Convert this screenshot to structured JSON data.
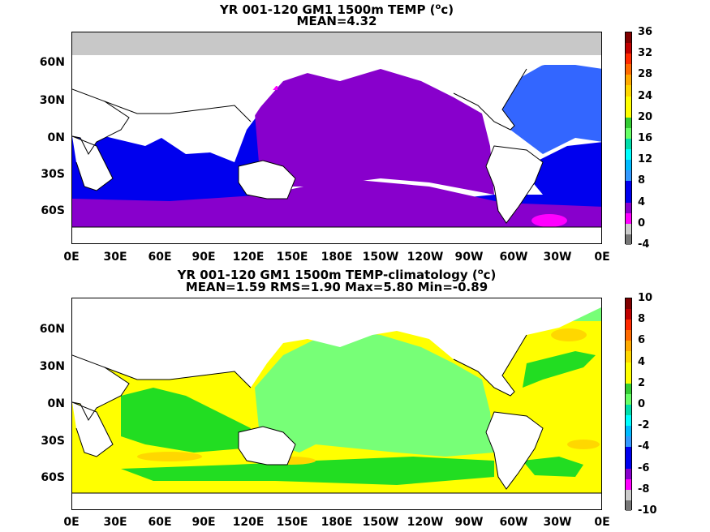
{
  "panels": [
    {
      "title_line1": "YR 001-120 GM1 1500m TEMP (",
      "title_sup": "o",
      "title_unit": "c)",
      "title_line2": "MEAN=4.32",
      "colorbar_labels": [
        "36",
        "32",
        "28",
        "24",
        "20",
        "16",
        "12",
        "8",
        "4",
        "0",
        "-4"
      ],
      "colorbar_colors": [
        "#800000",
        "#c00000",
        "#ff2a00",
        "#ff6a00",
        "#ffaa00",
        "#ffd700",
        "#ffff00",
        "#ffff00",
        "#33cc33",
        "#66ff66",
        "#00ddaa",
        "#00ffff",
        "#00bbff",
        "#3399ff",
        "#0000ee",
        "#0000ee",
        "#8800cc",
        "#ff00ff",
        "#cccccc",
        "#777777"
      ]
    },
    {
      "title_line1": "YR 001-120 GM1 1500m TEMP-climatology (",
      "title_sup": "o",
      "title_unit": "c)",
      "title_line2": "MEAN=1.59   RMS=1.90   Max=5.80   Min=-0.89",
      "colorbar_labels": [
        "10",
        "8",
        "6",
        "4",
        "2",
        "0",
        "-2",
        "-4",
        "-6",
        "-8",
        "-10"
      ],
      "colorbar_colors": [
        "#800000",
        "#c00000",
        "#ff2a00",
        "#ff6a00",
        "#ffaa00",
        "#ffd700",
        "#ffff00",
        "#ffff00",
        "#33cc33",
        "#66ff66",
        "#00ddaa",
        "#00ffff",
        "#00bbff",
        "#3399ff",
        "#0000ee",
        "#0000ee",
        "#8800cc",
        "#ff00ff",
        "#cccccc",
        "#777777"
      ]
    }
  ],
  "lat_labels": [
    "60N",
    "30N",
    "0N",
    "30S",
    "60S"
  ],
  "lon_labels": [
    "0E",
    "30E",
    "60E",
    "90E",
    "120E",
    "150E",
    "180E",
    "150W",
    "120W",
    "90W",
    "60W",
    "30W",
    "0E"
  ]
}
